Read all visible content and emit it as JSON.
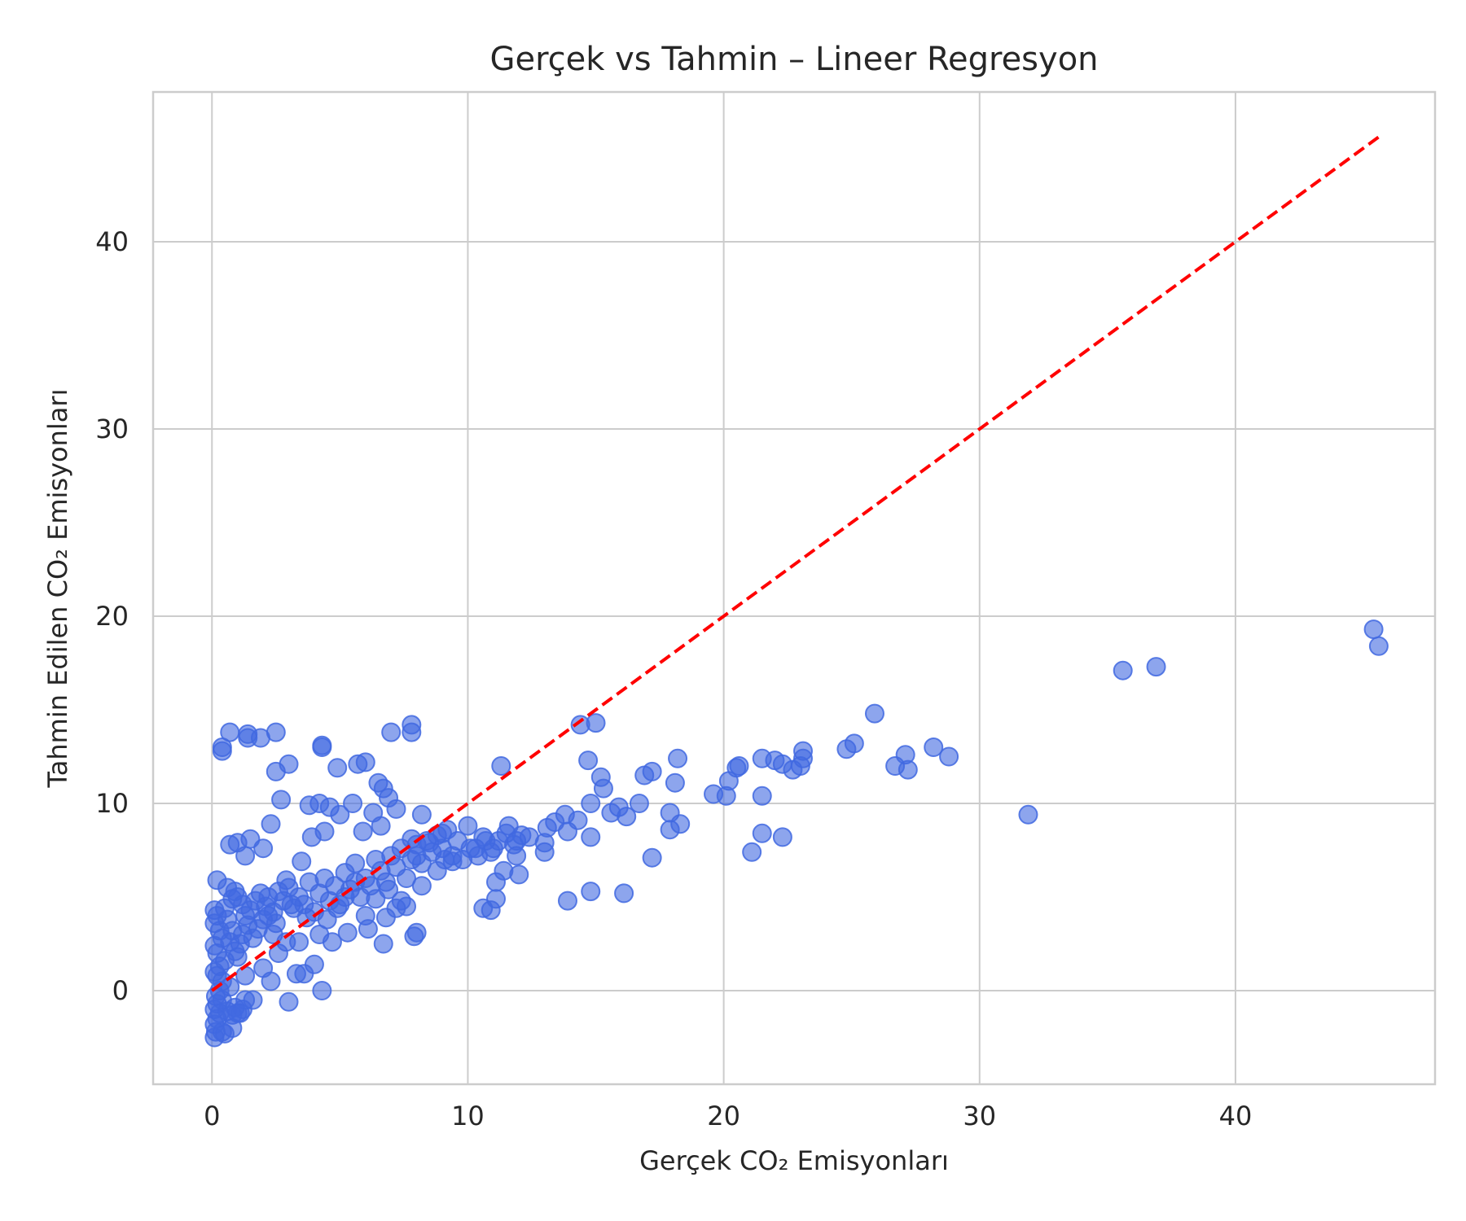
{
  "chart_data": {
    "type": "scatter",
    "title": "Gerçek vs Tahmin – Lineer Regresyon",
    "xlabel": "Gerçek CO₂ Emisyonları",
    "ylabel": "Tahmin Edilen CO₂ Emisyonları",
    "xlim": [
      -2.3,
      47.8
    ],
    "ylim": [
      -5,
      48
    ],
    "xticks": [
      0,
      10,
      20,
      30,
      40
    ],
    "yticks": [
      0,
      10,
      20,
      30,
      40
    ],
    "grid": true,
    "colors": {
      "points": "#4169e1",
      "reference": "#ff0000",
      "grid": "#cccccc",
      "text": "#262626"
    },
    "reference_line": {
      "style": "dashed",
      "from": [
        0,
        0
      ],
      "to": [
        45.6,
        45.6
      ]
    },
    "series": [
      {
        "points": [
          [
            0.1,
            -2.5
          ],
          [
            0.15,
            -2.2
          ],
          [
            0.1,
            -1.8
          ],
          [
            0.2,
            -1.5
          ],
          [
            0.3,
            -1.2
          ],
          [
            0.1,
            -1.0
          ],
          [
            0.2,
            -0.7
          ],
          [
            0.4,
            -0.5
          ],
          [
            0.15,
            -0.3
          ],
          [
            0.3,
            0.0
          ],
          [
            0.5,
            -2.3
          ],
          [
            0.8,
            -2.0
          ],
          [
            0.6,
            -1.1
          ],
          [
            0.9,
            -0.9
          ],
          [
            1.0,
            -1.2
          ],
          [
            1.2,
            -1.0
          ],
          [
            1.3,
            -0.5
          ],
          [
            0.7,
            0.2
          ],
          [
            0.4,
            0.5
          ],
          [
            0.2,
            0.8
          ],
          [
            0.1,
            1.0
          ],
          [
            0.3,
            1.3
          ],
          [
            0.5,
            1.6
          ],
          [
            0.2,
            2.0
          ],
          [
            0.1,
            2.4
          ],
          [
            0.4,
            2.8
          ],
          [
            0.3,
            3.2
          ],
          [
            0.1,
            3.6
          ],
          [
            0.2,
            4.0
          ],
          [
            0.1,
            4.3
          ],
          [
            0.5,
            4.4
          ],
          [
            0.6,
            3.8
          ],
          [
            0.8,
            3.2
          ],
          [
            0.7,
            2.6
          ],
          [
            0.9,
            2.1
          ],
          [
            1.0,
            1.8
          ],
          [
            1.1,
            2.5
          ],
          [
            1.2,
            3.0
          ],
          [
            1.4,
            3.5
          ],
          [
            1.3,
            4.0
          ],
          [
            1.5,
            4.3
          ],
          [
            1.6,
            2.8
          ],
          [
            1.8,
            3.3
          ],
          [
            2.0,
            3.8
          ],
          [
            2.1,
            4.5
          ],
          [
            2.2,
            5.0
          ],
          [
            2.4,
            4.2
          ],
          [
            2.5,
            3.6
          ],
          [
            2.6,
            5.3
          ],
          [
            2.8,
            4.8
          ],
          [
            3.0,
            5.5
          ],
          [
            3.2,
            4.4
          ],
          [
            3.4,
            5.0
          ],
          [
            3.6,
            4.6
          ],
          [
            3.8,
            5.8
          ],
          [
            4.0,
            4.2
          ],
          [
            4.2,
            5.2
          ],
          [
            4.4,
            6.0
          ],
          [
            4.6,
            4.8
          ],
          [
            4.8,
            5.6
          ],
          [
            5.0,
            4.6
          ],
          [
            5.2,
            6.3
          ],
          [
            5.4,
            5.4
          ],
          [
            5.6,
            6.8
          ],
          [
            5.8,
            5.0
          ],
          [
            6.0,
            6.0
          ],
          [
            6.2,
            5.6
          ],
          [
            6.4,
            7.0
          ],
          [
            6.6,
            6.4
          ],
          [
            6.8,
            5.8
          ],
          [
            7.0,
            7.2
          ],
          [
            7.2,
            6.6
          ],
          [
            7.4,
            7.6
          ],
          [
            7.6,
            6.0
          ],
          [
            7.8,
            7.0
          ],
          [
            8.0,
            7.8
          ],
          [
            8.2,
            6.8
          ],
          [
            8.4,
            8.0
          ],
          [
            8.6,
            7.4
          ],
          [
            8.8,
            8.3
          ],
          [
            9.0,
            7.6
          ],
          [
            9.2,
            8.6
          ],
          [
            9.4,
            7.2
          ],
          [
            9.6,
            8.0
          ],
          [
            9.8,
            7.0
          ],
          [
            10.0,
            8.8
          ],
          [
            10.3,
            7.6
          ],
          [
            10.6,
            8.2
          ],
          [
            10.9,
            7.4
          ],
          [
            11.2,
            8.0
          ],
          [
            11.5,
            8.4
          ],
          [
            11.8,
            7.8
          ],
          [
            12.1,
            8.3
          ],
          [
            12.4,
            8.2
          ],
          [
            11.0,
            7.6
          ],
          [
            10.7,
            8.0
          ],
          [
            10.4,
            7.2
          ],
          [
            10.1,
            7.6
          ],
          [
            11.6,
            8.8
          ],
          [
            11.9,
            8.0
          ],
          [
            0.2,
            5.9
          ],
          [
            0.7,
            7.8
          ],
          [
            1.0,
            7.9
          ],
          [
            1.3,
            7.2
          ],
          [
            1.5,
            8.1
          ],
          [
            2.0,
            7.6
          ],
          [
            2.3,
            8.9
          ],
          [
            2.7,
            10.2
          ],
          [
            3.0,
            12.1
          ],
          [
            2.5,
            11.7
          ],
          [
            0.4,
            12.8
          ],
          [
            0.4,
            13.0
          ],
          [
            0.7,
            13.8
          ],
          [
            1.4,
            13.7
          ],
          [
            1.4,
            13.5
          ],
          [
            1.9,
            13.5
          ],
          [
            2.5,
            13.8
          ],
          [
            3.8,
            9.9
          ],
          [
            4.2,
            10.0
          ],
          [
            4.6,
            9.8
          ],
          [
            4.3,
            13.0
          ],
          [
            4.3,
            13.1
          ],
          [
            4.9,
            11.9
          ],
          [
            5.7,
            12.1
          ],
          [
            6.0,
            12.2
          ],
          [
            6.5,
            11.1
          ],
          [
            6.7,
            10.8
          ],
          [
            6.9,
            10.3
          ],
          [
            7.0,
            13.8
          ],
          [
            7.8,
            14.2
          ],
          [
            7.8,
            13.8
          ],
          [
            5.5,
            10.0
          ],
          [
            6.3,
            9.5
          ],
          [
            6.6,
            8.8
          ],
          [
            7.2,
            9.7
          ],
          [
            8.2,
            9.4
          ],
          [
            7.8,
            8.1
          ],
          [
            7.6,
            4.5
          ],
          [
            7.2,
            4.4
          ],
          [
            6.7,
            2.5
          ],
          [
            7.9,
            2.9
          ],
          [
            8.0,
            3.1
          ],
          [
            3.0,
            -0.6
          ],
          [
            4.3,
            0.0
          ],
          [
            4.0,
            1.4
          ],
          [
            3.6,
            0.9
          ],
          [
            3.3,
            0.9
          ],
          [
            2.3,
            0.5
          ],
          [
            1.3,
            0.8
          ],
          [
            1.1,
            -1.2
          ],
          [
            0.4,
            -2.2
          ],
          [
            0.8,
            -1.3
          ],
          [
            1.6,
            -0.5
          ],
          [
            2.0,
            1.2
          ],
          [
            2.6,
            2.0
          ],
          [
            3.4,
            2.6
          ],
          [
            4.2,
            3.0
          ],
          [
            4.7,
            2.6
          ],
          [
            5.3,
            3.1
          ],
          [
            6.1,
            3.3
          ],
          [
            6.8,
            3.9
          ],
          [
            7.4,
            4.8
          ],
          [
            8.2,
            5.6
          ],
          [
            8.8,
            6.4
          ],
          [
            9.1,
            7.0
          ],
          [
            3.5,
            6.9
          ],
          [
            3.9,
            8.2
          ],
          [
            4.4,
            8.5
          ],
          [
            5.0,
            9.4
          ],
          [
            5.9,
            8.5
          ],
          [
            13.0,
            7.4
          ],
          [
            13.0,
            7.9
          ],
          [
            13.1,
            8.7
          ],
          [
            13.4,
            9.0
          ],
          [
            13.8,
            9.4
          ],
          [
            13.9,
            8.5
          ],
          [
            14.3,
            9.1
          ],
          [
            14.4,
            14.2
          ],
          [
            14.7,
            12.3
          ],
          [
            15.0,
            14.3
          ],
          [
            15.2,
            11.4
          ],
          [
            15.3,
            10.8
          ],
          [
            14.8,
            10.0
          ],
          [
            15.6,
            9.5
          ],
          [
            15.9,
            9.8
          ],
          [
            16.2,
            9.3
          ],
          [
            16.7,
            10.0
          ],
          [
            16.9,
            11.5
          ],
          [
            17.2,
            11.7
          ],
          [
            17.2,
            7.1
          ],
          [
            17.9,
            8.6
          ],
          [
            17.9,
            9.5
          ],
          [
            18.1,
            11.1
          ],
          [
            18.2,
            12.4
          ],
          [
            18.3,
            8.9
          ],
          [
            19.6,
            10.5
          ],
          [
            20.1,
            10.4
          ],
          [
            20.2,
            11.2
          ],
          [
            20.5,
            11.9
          ],
          [
            20.6,
            12.0
          ],
          [
            21.1,
            7.4
          ],
          [
            21.5,
            10.4
          ],
          [
            21.5,
            12.4
          ],
          [
            21.5,
            8.4
          ],
          [
            22.0,
            12.3
          ],
          [
            22.3,
            8.2
          ],
          [
            22.3,
            12.1
          ],
          [
            22.7,
            11.8
          ],
          [
            23.0,
            12.0
          ],
          [
            23.1,
            12.4
          ],
          [
            23.1,
            12.8
          ],
          [
            24.8,
            12.9
          ],
          [
            25.1,
            13.2
          ],
          [
            25.9,
            14.8
          ],
          [
            26.7,
            12.0
          ],
          [
            27.1,
            12.6
          ],
          [
            27.2,
            11.8
          ],
          [
            28.2,
            13.0
          ],
          [
            28.8,
            12.5
          ],
          [
            31.9,
            9.4
          ],
          [
            35.6,
            17.1
          ],
          [
            36.9,
            17.3
          ],
          [
            45.4,
            19.3
          ],
          [
            45.6,
            18.4
          ],
          [
            13.9,
            4.8
          ],
          [
            14.8,
            5.3
          ],
          [
            16.1,
            5.2
          ],
          [
            14.8,
            8.2
          ],
          [
            10.6,
            4.4
          ],
          [
            10.9,
            4.3
          ],
          [
            11.1,
            4.9
          ],
          [
            11.1,
            5.8
          ],
          [
            11.4,
            6.4
          ],
          [
            11.9,
            7.2
          ],
          [
            12.0,
            6.2
          ],
          [
            11.3,
            12.0
          ],
          [
            8.0,
            7.2
          ],
          [
            8.5,
            7.9
          ],
          [
            9.0,
            8.4
          ],
          [
            9.4,
            6.9
          ],
          [
            5.2,
            5.0
          ],
          [
            5.6,
            5.8
          ],
          [
            6.0,
            4.0
          ],
          [
            6.4,
            4.9
          ],
          [
            6.9,
            5.4
          ],
          [
            2.9,
            5.9
          ],
          [
            3.1,
            4.6
          ],
          [
            3.7,
            3.9
          ],
          [
            4.5,
            3.8
          ],
          [
            4.9,
            4.4
          ],
          [
            1.9,
            5.2
          ],
          [
            1.7,
            4.8
          ],
          [
            2.2,
            4.0
          ],
          [
            2.4,
            3.0
          ],
          [
            2.9,
            2.6
          ],
          [
            1.0,
            5.0
          ],
          [
            0.9,
            5.3
          ],
          [
            1.2,
            4.6
          ],
          [
            0.6,
            5.5
          ],
          [
            0.8,
            4.9
          ]
        ]
      }
    ]
  }
}
